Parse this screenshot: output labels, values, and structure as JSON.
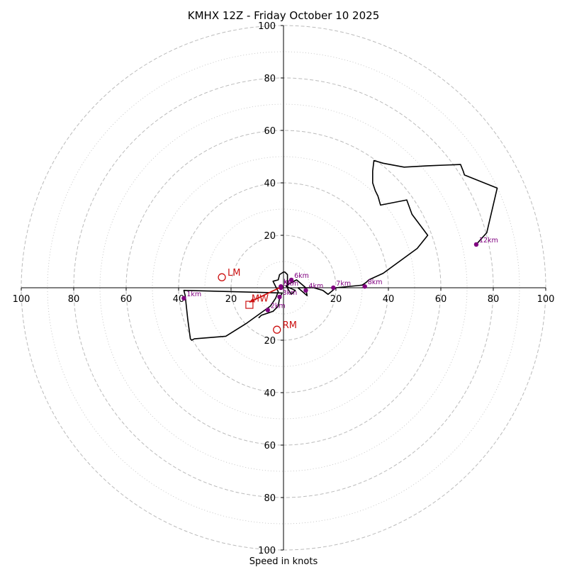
{
  "chart_data": {
    "type": "hodograph",
    "title": "KMHX 12Z - Friday October 10 2025",
    "xlabel": "Speed in knots",
    "xlim": [
      -100,
      100
    ],
    "ylim": [
      -100,
      100
    ],
    "ring_dashed": [
      20,
      40,
      60,
      80,
      100
    ],
    "ring_dotted": [
      10,
      30,
      50,
      70,
      90
    ],
    "x_ticks": [
      {
        "value": -100,
        "label": "100"
      },
      {
        "value": -80,
        "label": "80"
      },
      {
        "value": -60,
        "label": "60"
      },
      {
        "value": -40,
        "label": "40"
      },
      {
        "value": -20,
        "label": "20"
      },
      {
        "value": 20,
        "label": "20"
      },
      {
        "value": 40,
        "label": "40"
      },
      {
        "value": 60,
        "label": "60"
      },
      {
        "value": 80,
        "label": "80"
      },
      {
        "value": 100,
        "label": "100"
      }
    ],
    "y_ticks": [
      {
        "value": 100,
        "label": "100"
      },
      {
        "value": 80,
        "label": "80"
      },
      {
        "value": 60,
        "label": "60"
      },
      {
        "value": 40,
        "label": "40"
      },
      {
        "value": 20,
        "label": "20"
      },
      {
        "value": -20,
        "label": "20"
      },
      {
        "value": -40,
        "label": "40"
      },
      {
        "value": -60,
        "label": "60"
      },
      {
        "value": -80,
        "label": "80"
      },
      {
        "value": -100,
        "label": "100"
      }
    ],
    "trace": [
      [
        -9.5,
        -11.5
      ],
      [
        -8.5,
        -10.5
      ],
      [
        -4,
        -9
      ],
      [
        -2,
        -7
      ],
      [
        -1.5,
        -4
      ],
      [
        -0.5,
        -2
      ],
      [
        -38,
        -1
      ],
      [
        -37.5,
        -3
      ],
      [
        -36.5,
        -12
      ],
      [
        -35.5,
        -19.5
      ],
      [
        -35,
        -20
      ],
      [
        -34,
        -19.5
      ],
      [
        -22,
        -18.5
      ],
      [
        -14,
        -13.5
      ],
      [
        -5,
        -7
      ],
      [
        -3,
        -4
      ],
      [
        -2,
        -1.5
      ],
      [
        -4,
        2.5
      ],
      [
        -2,
        3
      ],
      [
        -1.5,
        5
      ],
      [
        0,
        6
      ],
      [
        0.5,
        6
      ],
      [
        1.5,
        5
      ],
      [
        1.5,
        4
      ],
      [
        1.5,
        0
      ],
      [
        2,
        -1
      ],
      [
        3,
        -2.5
      ],
      [
        4.5,
        -1
      ],
      [
        1,
        0.5
      ],
      [
        2,
        1.5
      ],
      [
        5,
        3
      ],
      [
        8.5,
        0
      ],
      [
        9,
        -3
      ],
      [
        5.5,
        0
      ],
      [
        11.5,
        0
      ],
      [
        15,
        -1
      ],
      [
        17,
        -2.5
      ],
      [
        20,
        0
      ],
      [
        30,
        1
      ],
      [
        31.5,
        2
      ],
      [
        32.5,
        3
      ],
      [
        38,
        5.5
      ],
      [
        51,
        15
      ],
      [
        55,
        20
      ],
      [
        49,
        28
      ],
      [
        47,
        33.5
      ],
      [
        37,
        31.5
      ],
      [
        36,
        35
      ],
      [
        35,
        37
      ],
      [
        34,
        40
      ],
      [
        34,
        44.5
      ],
      [
        34.5,
        48.5
      ],
      [
        38,
        47.5
      ],
      [
        46,
        46
      ],
      [
        55,
        46.5
      ],
      [
        67.5,
        47
      ],
      [
        68.5,
        44.5
      ],
      [
        69,
        43
      ],
      [
        81.5,
        38
      ],
      [
        77.5,
        21
      ],
      [
        73.5,
        16.5
      ]
    ],
    "height_markers": [
      {
        "label": "1km",
        "u": -38,
        "v": -4
      },
      {
        "label": "2km",
        "u": -6,
        "v": -8.5
      },
      {
        "label": "3km",
        "u": -1.5,
        "v": -3.5
      },
      {
        "label": "4km",
        "u": 8.5,
        "v": -1
      },
      {
        "label": "5km",
        "u": -1,
        "v": 0
      },
      {
        "label": "6km",
        "u": 3,
        "v": 3
      },
      {
        "label": "7km",
        "u": 19,
        "v": 0
      },
      {
        "label": "8km",
        "u": 31,
        "v": 0.5
      },
      {
        "label": "12km",
        "u": 73.5,
        "v": 16.5
      },
      {
        "label": "km",
        "u": -1,
        "v": 0.5
      }
    ],
    "storm_motion": {
      "lm": {
        "label": "LM",
        "u": -23.5,
        "v": 4
      },
      "rm": {
        "label": "RM",
        "u": -2.5,
        "v": -16
      },
      "mw": {
        "label": "MW",
        "u": -13,
        "v": -5.5
      }
    },
    "shear_vector": {
      "from": [
        -1.5,
        0
      ],
      "to": [
        -13,
        -5.5
      ]
    },
    "mw_box": {
      "u": -13,
      "v": -6.5
    },
    "colors": {
      "trace": "#000000",
      "marker": "#800080",
      "storm": "#cc1111",
      "grid": "#bbbbbb",
      "axis": "#000000"
    }
  }
}
